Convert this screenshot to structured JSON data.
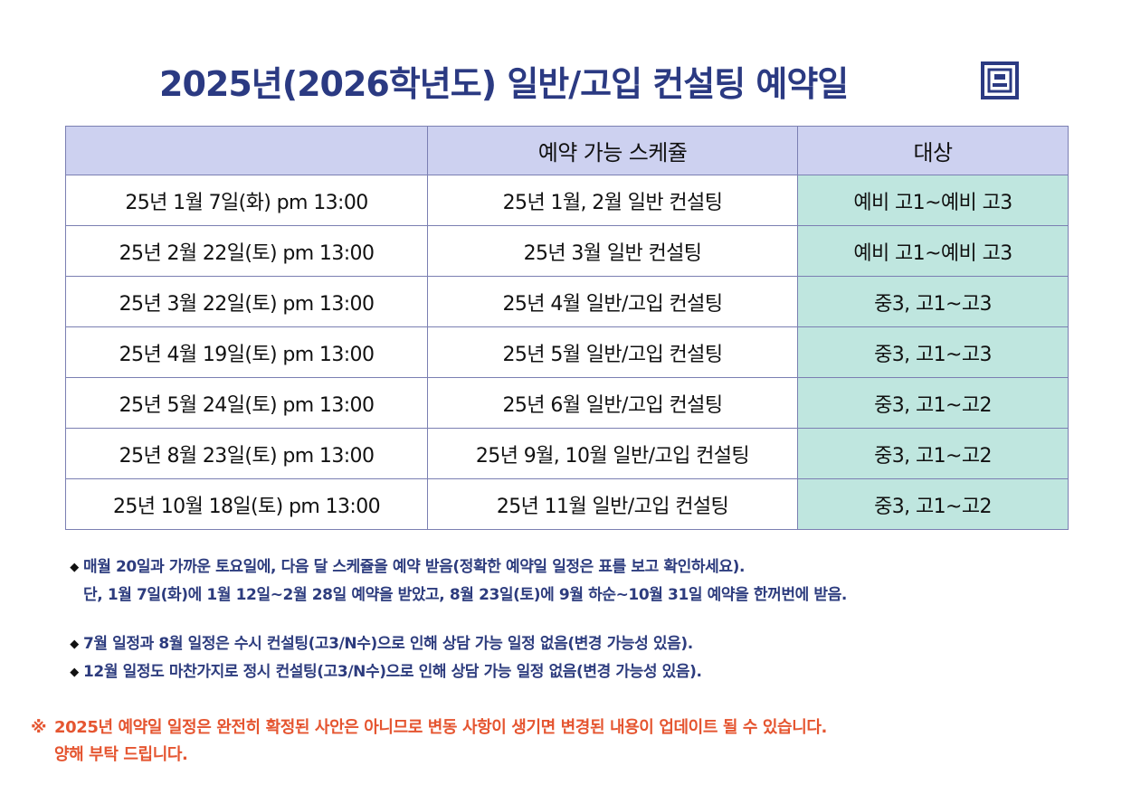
{
  "title": "2025년(2026학년도)   일반/고입 컨설팅 예약일",
  "logo_icon": "square-seal-logo",
  "colors": {
    "title": "#2b3a82",
    "header_bg": "#cdd1f0",
    "target_bg": "#bfe6df",
    "note": "#2d3c7e",
    "warning": "#e55530"
  },
  "table": {
    "headers": [
      "",
      "예약 가능 스케쥴",
      "대상"
    ],
    "rows": [
      {
        "date": "25년 1월 7일(화) pm 13:00",
        "schedule": "25년 1월, 2월 일반 컨설팅",
        "target": "예비 고1~예비 고3"
      },
      {
        "date": "25년 2월 22일(토) pm 13:00",
        "schedule": "25년 3월 일반 컨설팅",
        "target": "예비 고1~예비 고3"
      },
      {
        "date": "25년 3월 22일(토) pm 13:00",
        "schedule": "25년 4월 일반/고입 컨설팅",
        "target": "중3, 고1~고3"
      },
      {
        "date": "25년 4월 19일(토) pm 13:00",
        "schedule": "25년 5월 일반/고입 컨설팅",
        "target": "중3, 고1~고3"
      },
      {
        "date": "25년 5월 24일(토) pm 13:00",
        "schedule": "25년 6월 일반/고입 컨설팅",
        "target": "중3, 고1~고2"
      },
      {
        "date": "25년 8월 23일(토) pm 13:00",
        "schedule": "25년 9월, 10월 일반/고입 컨설팅",
        "target": "중3, 고1~고2"
      },
      {
        "date": "25년 10월 18일(토) pm 13:00",
        "schedule": "25년 11월 일반/고입 컨설팅",
        "target": "중3, 고1~고2"
      }
    ]
  },
  "notes": {
    "bullet": "◆",
    "n1_line1": "매월 20일과 가까운 토요일에, 다음 달 스케쥴을 예약 받음(정확한 예약일 일정은 표를 보고 확인하세요).",
    "n1_line2": "단, 1월 7일(화)에 1월 12일~2월 28일 예약을 받았고, 8월 23일(토)에 9월 하순~10월 31일 예약을 한꺼번에 받음.",
    "n2": "7월 일정과 8월 일정은 수시 컨설팅(고3/N수)으로 인해 상담 가능 일정 없음(변경 가능성 있음).",
    "n3": "12월 일정도 마찬가지로 정시 컨설팅(고3/N수)으로 인해 상담 가능 일정 없음(변경 가능성 있음)."
  },
  "warning": {
    "mark": "※",
    "line1": "2025년 예약일 일정은 완전히 확정된 사안은 아니므로 변동 사항이 생기면 변경된 내용이 업데이트 될 수 있습니다.",
    "line2": "양해 부탁 드립니다."
  }
}
